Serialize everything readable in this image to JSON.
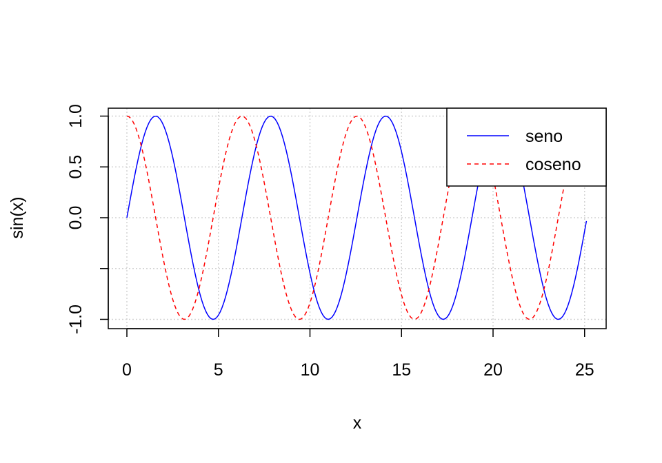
{
  "chart_data": {
    "type": "line",
    "title": "",
    "xlabel": "x",
    "ylabel": "sin(x)",
    "xlim": [
      0,
      25.1
    ],
    "ylim": [
      -1,
      1
    ],
    "x_ticks": [
      "0",
      "5",
      "10",
      "15",
      "20",
      "25"
    ],
    "y_ticks": [
      "-1.0",
      "0.0",
      "0.5",
      "1.0"
    ],
    "grid": true,
    "legend": {
      "placement": "top-right"
    },
    "series": [
      {
        "name": "seno",
        "function": "sin",
        "x_start": 0,
        "x_end": 25.1,
        "x_step": 0.1,
        "color": "#0000ff",
        "line_style": "solid"
      },
      {
        "name": "coseno",
        "function": "cos",
        "x_start": 0,
        "x_end": 25.1,
        "x_step": 0.1,
        "color": "#ff0000",
        "line_style": "dashed"
      }
    ]
  }
}
